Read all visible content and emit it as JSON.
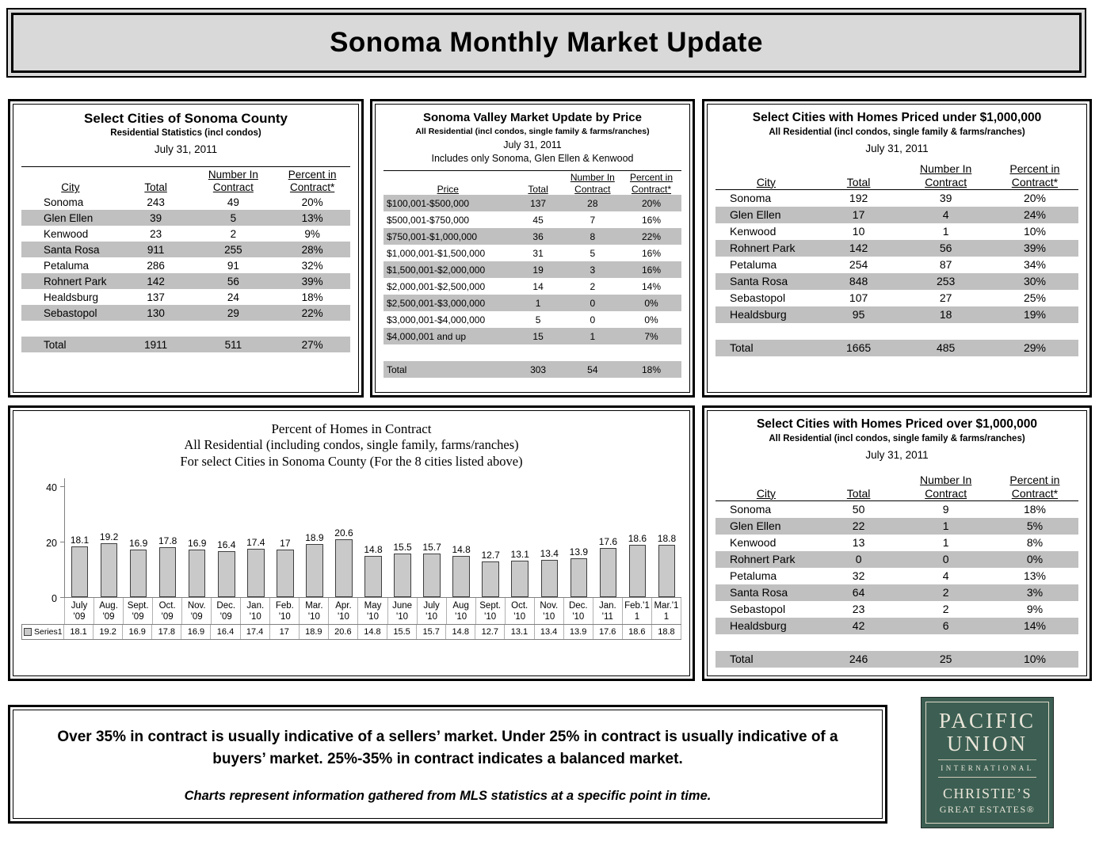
{
  "page_title": "Sonoma Monthly Market Update",
  "colors": {
    "row_shade": "#c0c0c0",
    "bar_fill": "#c9c9c9",
    "header_bg": "#d9d9d9",
    "logo_bg": "#3d5f53",
    "logo_text": "#e9e5d8"
  },
  "tables": {
    "select_cities": {
      "title": "Select Cities of Sonoma County",
      "subtitle": "Residential Statistics (incl condos)",
      "date": "July 31, 2011",
      "columns": [
        [
          "City"
        ],
        [
          "Total"
        ],
        [
          "Number In",
          "Contract"
        ],
        [
          "Percent in",
          "Contract*"
        ]
      ],
      "rows": [
        {
          "cells": [
            "Sonoma",
            "243",
            "49",
            "20%"
          ],
          "shaded": false
        },
        {
          "cells": [
            "Glen Ellen",
            "39",
            "5",
            "13%"
          ],
          "shaded": true
        },
        {
          "cells": [
            "Kenwood",
            "23",
            "2",
            "9%"
          ],
          "shaded": false
        },
        {
          "cells": [
            "Santa Rosa",
            "911",
            "255",
            "28%"
          ],
          "shaded": true
        },
        {
          "cells": [
            "Petaluma",
            "286",
            "91",
            "32%"
          ],
          "shaded": false
        },
        {
          "cells": [
            "Rohnert Park",
            "142",
            "56",
            "39%"
          ],
          "shaded": true
        },
        {
          "cells": [
            "Healdsburg",
            "137",
            "24",
            "18%"
          ],
          "shaded": false
        },
        {
          "cells": [
            "Sebastopol",
            "130",
            "29",
            "22%"
          ],
          "shaded": true
        },
        {
          "cells": [
            "",
            "",
            "",
            ""
          ],
          "shaded": false
        },
        {
          "cells": [
            "Total",
            "1911",
            "511",
            "27%"
          ],
          "shaded": true
        }
      ]
    },
    "by_price": {
      "title": "Sonoma Valley Market Update by Price",
      "subtitle": "All Residential (incl condos, single family & farms/ranches)",
      "date": "July 31, 2011",
      "note": "Includes only Sonoma, Glen Ellen & Kenwood",
      "columns": [
        [
          "Price"
        ],
        [
          "Total"
        ],
        [
          "Number In",
          "Contract"
        ],
        [
          "Percent in",
          "Contract*"
        ]
      ],
      "rows": [
        {
          "cells": [
            "$100,001-$500,000",
            "137",
            "28",
            "20%"
          ],
          "shaded": true
        },
        {
          "cells": [
            "$500,001-$750,000",
            "45",
            "7",
            "16%"
          ],
          "shaded": false
        },
        {
          "cells": [
            "$750,001-$1,000,000",
            "36",
            "8",
            "22%"
          ],
          "shaded": true
        },
        {
          "cells": [
            "$1,000,001-$1,500,000",
            "31",
            "5",
            "16%"
          ],
          "shaded": false
        },
        {
          "cells": [
            "$1,500,001-$2,000,000",
            "19",
            "3",
            "16%"
          ],
          "shaded": true
        },
        {
          "cells": [
            "$2,000,001-$2,500,000",
            "14",
            "2",
            "14%"
          ],
          "shaded": false
        },
        {
          "cells": [
            "$2,500,001-$3,000,000",
            "1",
            "0",
            "0%"
          ],
          "shaded": true
        },
        {
          "cells": [
            "$3,000,001-$4,000,000",
            "5",
            "0",
            "0%"
          ],
          "shaded": false
        },
        {
          "cells": [
            "$4,000,001 and up",
            "15",
            "1",
            "7%"
          ],
          "shaded": true
        },
        {
          "cells": [
            "",
            "",
            "",
            ""
          ],
          "shaded": false
        },
        {
          "cells": [
            "Total",
            "303",
            "54",
            "18%"
          ],
          "shaded": true
        }
      ]
    },
    "under_1m": {
      "title": "Select Cities with Homes Priced under $1,000,000",
      "subtitle": "All Residential (incl condos, single family & farms/ranches)",
      "date": "July 31, 2011",
      "columns": [
        [
          "City"
        ],
        [
          "Total"
        ],
        [
          "Number In",
          "Contract"
        ],
        [
          "Percent in",
          "Contract*"
        ]
      ],
      "rows": [
        {
          "cells": [
            "Sonoma",
            "192",
            "39",
            "20%"
          ],
          "shaded": false
        },
        {
          "cells": [
            "Glen Ellen",
            "17",
            "4",
            "24%"
          ],
          "shaded": true
        },
        {
          "cells": [
            "Kenwood",
            "10",
            "1",
            "10%"
          ],
          "shaded": false
        },
        {
          "cells": [
            "Rohnert Park",
            "142",
            "56",
            "39%"
          ],
          "shaded": true
        },
        {
          "cells": [
            "Petaluma",
            "254",
            "87",
            "34%"
          ],
          "shaded": false
        },
        {
          "cells": [
            "Santa Rosa",
            "848",
            "253",
            "30%"
          ],
          "shaded": true
        },
        {
          "cells": [
            "Sebastopol",
            "107",
            "27",
            "25%"
          ],
          "shaded": false
        },
        {
          "cells": [
            "Healdsburg",
            "95",
            "18",
            "19%"
          ],
          "shaded": true
        },
        {
          "cells": [
            "",
            "",
            "",
            ""
          ],
          "shaded": false
        },
        {
          "cells": [
            "Total",
            "1665",
            "485",
            "29%"
          ],
          "shaded": true
        }
      ]
    },
    "over_1m": {
      "title": "Select Cities with Homes Priced over $1,000,000",
      "subtitle": "All Residential (incl condos, single family & farms/ranches)",
      "date": "July 31, 2011",
      "columns": [
        [
          "City"
        ],
        [
          "Total"
        ],
        [
          "Number In",
          "Contract"
        ],
        [
          "Percent in",
          "Contract*"
        ]
      ],
      "rows": [
        {
          "cells": [
            "Sonoma",
            "50",
            "9",
            "18%"
          ],
          "shaded": false
        },
        {
          "cells": [
            "Glen Ellen",
            "22",
            "1",
            "5%"
          ],
          "shaded": true
        },
        {
          "cells": [
            "Kenwood",
            "13",
            "1",
            "8%"
          ],
          "shaded": false
        },
        {
          "cells": [
            "Rohnert Park",
            "0",
            "0",
            "0%"
          ],
          "shaded": true
        },
        {
          "cells": [
            "Petaluma",
            "32",
            "4",
            "13%"
          ],
          "shaded": false
        },
        {
          "cells": [
            "Santa Rosa",
            "64",
            "2",
            "3%"
          ],
          "shaded": true
        },
        {
          "cells": [
            "Sebastopol",
            "23",
            "2",
            "9%"
          ],
          "shaded": false
        },
        {
          "cells": [
            "Healdsburg",
            "42",
            "6",
            "14%"
          ],
          "shaded": true
        },
        {
          "cells": [
            "",
            "",
            "",
            ""
          ],
          "shaded": false
        },
        {
          "cells": [
            "Total",
            "246",
            "25",
            "10%"
          ],
          "shaded": true
        }
      ]
    }
  },
  "chart_data": {
    "type": "bar",
    "title": "Percent of Homes in Contract",
    "subtitle1": "All Residential (including condos, single family, farms/ranches)",
    "subtitle2": "For select Cities in Sonoma County (For the 8 cities listed above)",
    "categories": [
      [
        "July",
        "'09"
      ],
      [
        "Aug.",
        "'09"
      ],
      [
        "Sept.",
        "'09"
      ],
      [
        "Oct.",
        "'09"
      ],
      [
        "Nov.",
        "'09"
      ],
      [
        "Dec.",
        "'09"
      ],
      [
        "Jan.",
        "'10"
      ],
      [
        "Feb.",
        "'10"
      ],
      [
        "Mar.",
        "'10"
      ],
      [
        "Apr.",
        "'10"
      ],
      [
        "May",
        "'10"
      ],
      [
        "June",
        "'10"
      ],
      [
        "July",
        "'10"
      ],
      [
        "Aug",
        "'10"
      ],
      [
        "Sept.",
        "'10"
      ],
      [
        "Oct.",
        "'10"
      ],
      [
        "Nov.",
        "'10"
      ],
      [
        "Dec.",
        "'10"
      ],
      [
        "Jan.",
        "'11"
      ],
      [
        "Feb.'1",
        "1"
      ],
      [
        "Mar.'1",
        "1"
      ]
    ],
    "series": [
      {
        "name": "Series1",
        "values": [
          18.1,
          19.2,
          16.9,
          17.8,
          16.9,
          16.4,
          17.4,
          17,
          18.9,
          20.6,
          14.8,
          15.5,
          15.7,
          14.8,
          12.7,
          13.1,
          13.4,
          13.9,
          17.6,
          18.6,
          18.8
        ]
      }
    ],
    "ylim": [
      0,
      40
    ],
    "yticks": [
      0,
      20,
      40
    ],
    "grid": false,
    "legend_position": "bottom-left-data-table"
  },
  "footer": {
    "note_line1": "Over 35% in contract is usually indicative of a sellers’ market.  Under 25% in contract is usually indicative of a buyers’ market.   25%-35% in contract indicates a balanced market.",
    "note_line2": "Charts represent information gathered from MLS statistics at a specific point in time."
  },
  "logo": {
    "name_line1": "PACIFIC",
    "name_line2": "UNION",
    "division": "INTERNATIONAL",
    "affiliate_line1": "CHRISTIE’S",
    "affiliate_line2": "GREAT ESTATES®"
  }
}
